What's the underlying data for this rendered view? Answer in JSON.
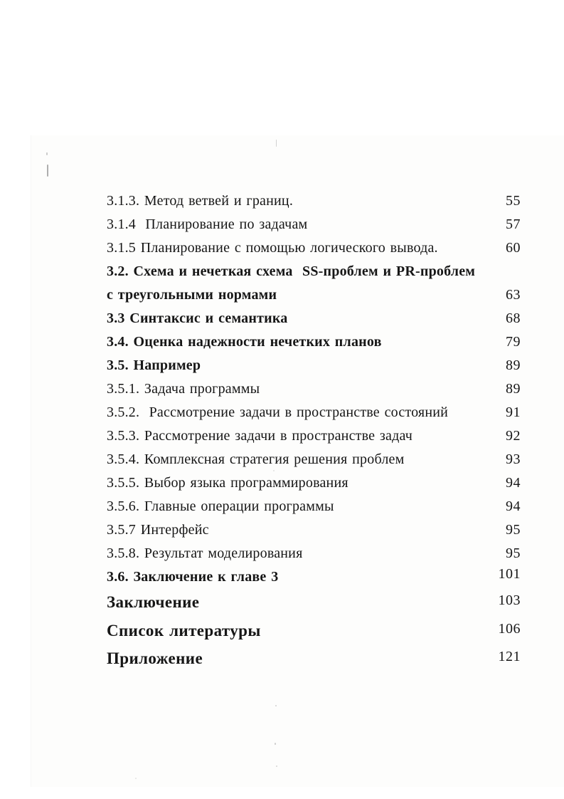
{
  "document": {
    "kind": "scanned table of contents page",
    "language": "Russian"
  },
  "colors": {
    "paper": "#ffffff",
    "text": "#161616"
  },
  "toc": {
    "entries": [
      {
        "label": "3.1.3. Метод ветвей и границ.",
        "page": "55",
        "emphasis": "regular",
        "size": "normal"
      },
      {
        "label": "3.1.4  Планирование по задачам",
        "page": "57",
        "emphasis": "regular",
        "size": "normal"
      },
      {
        "label": "3.1.5 Планирование с помощью логического вывода.",
        "page": "60",
        "emphasis": "regular",
        "size": "normal"
      },
      {
        "label": "3.2. Схема и нечеткая схема  SS-проблем и PR-проблем с треугольными нормами",
        "page": "63",
        "emphasis": "bold",
        "size": "normal"
      },
      {
        "label": "3.3 Синтаксис и семантика",
        "page": "68",
        "emphasis": "bold",
        "size": "normal"
      },
      {
        "label": "3.4. Оценка надежности нечетких планов",
        "page": "79",
        "emphasis": "bold",
        "size": "normal"
      },
      {
        "label": "3.5. Например",
        "page": "89",
        "emphasis": "bold",
        "size": "normal"
      },
      {
        "label": "3.5.1. Задача программы",
        "page": "89",
        "emphasis": "regular",
        "size": "normal"
      },
      {
        "label": "3.5.2.  Рассмотрение задачи в пространстве состояний",
        "page": "91",
        "emphasis": "regular",
        "size": "normal"
      },
      {
        "label": "3.5.3. Рассмотрение задачи в пространстве задач",
        "page": "92",
        "emphasis": "regular",
        "size": "normal"
      },
      {
        "label": "3.5.4. Комплексная стратегия решения проблем",
        "page": "93",
        "emphasis": "regular",
        "size": "normal"
      },
      {
        "label": "3.5.5. Выбор языка программирования",
        "page": "94",
        "emphasis": "regular",
        "size": "normal"
      },
      {
        "label": "3.5.6. Главные операции программы",
        "page": "94",
        "emphasis": "regular",
        "size": "normal"
      },
      {
        "label": "3.5.7 Интерфейс",
        "page": "95",
        "emphasis": "regular",
        "size": "normal"
      },
      {
        "label": "3.5.8. Результат моделирования",
        "page": "95",
        "emphasis": "regular",
        "size": "normal"
      },
      {
        "label": "3.6. Заключение к главе 3",
        "page": "101",
        "emphasis": "bold",
        "size": "normal"
      },
      {
        "label": "Заключение",
        "page": "103",
        "emphasis": "bold",
        "size": "large"
      },
      {
        "label": "Список литературы",
        "page": "106",
        "emphasis": "bold",
        "size": "large"
      },
      {
        "label": "Приложение",
        "page": "121",
        "emphasis": "bold",
        "size": "large"
      }
    ]
  }
}
